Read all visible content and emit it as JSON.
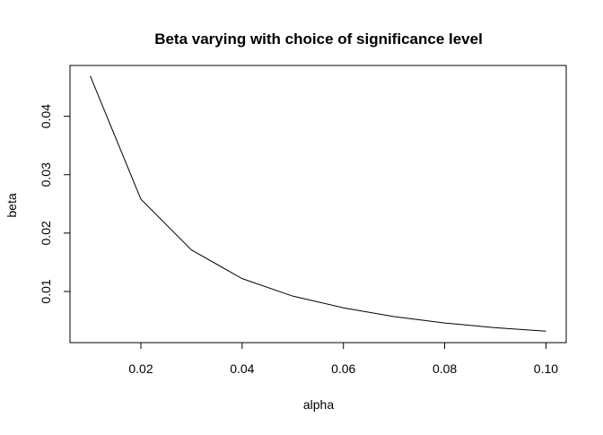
{
  "chart_data": {
    "type": "line",
    "title": "Beta varying with choice of significance level",
    "xlabel": "alpha",
    "ylabel": "beta",
    "x": [
      0.01,
      0.02,
      0.03,
      0.04,
      0.05,
      0.06,
      0.07,
      0.08,
      0.09,
      0.1
    ],
    "series": [
      {
        "values": [
          0.0469,
          0.0258,
          0.0171,
          0.0122,
          0.0092,
          0.0072,
          0.0057,
          0.0046,
          0.0038,
          0.0032
        ]
      }
    ],
    "xlim": [
      0.006,
      0.104
    ],
    "ylim": [
      0.00124,
      0.0487
    ],
    "x_ticks": [
      0.02,
      0.04,
      0.06,
      0.08,
      0.1
    ],
    "x_tick_labels": [
      "0.02",
      "0.04",
      "0.06",
      "0.08",
      "0.10"
    ],
    "y_ticks": [
      0.01,
      0.02,
      0.03,
      0.04
    ],
    "y_tick_labels": [
      "0.01",
      "0.02",
      "0.03",
      "0.04"
    ],
    "grid": false,
    "legend": "none",
    "line_color": "#000000"
  }
}
